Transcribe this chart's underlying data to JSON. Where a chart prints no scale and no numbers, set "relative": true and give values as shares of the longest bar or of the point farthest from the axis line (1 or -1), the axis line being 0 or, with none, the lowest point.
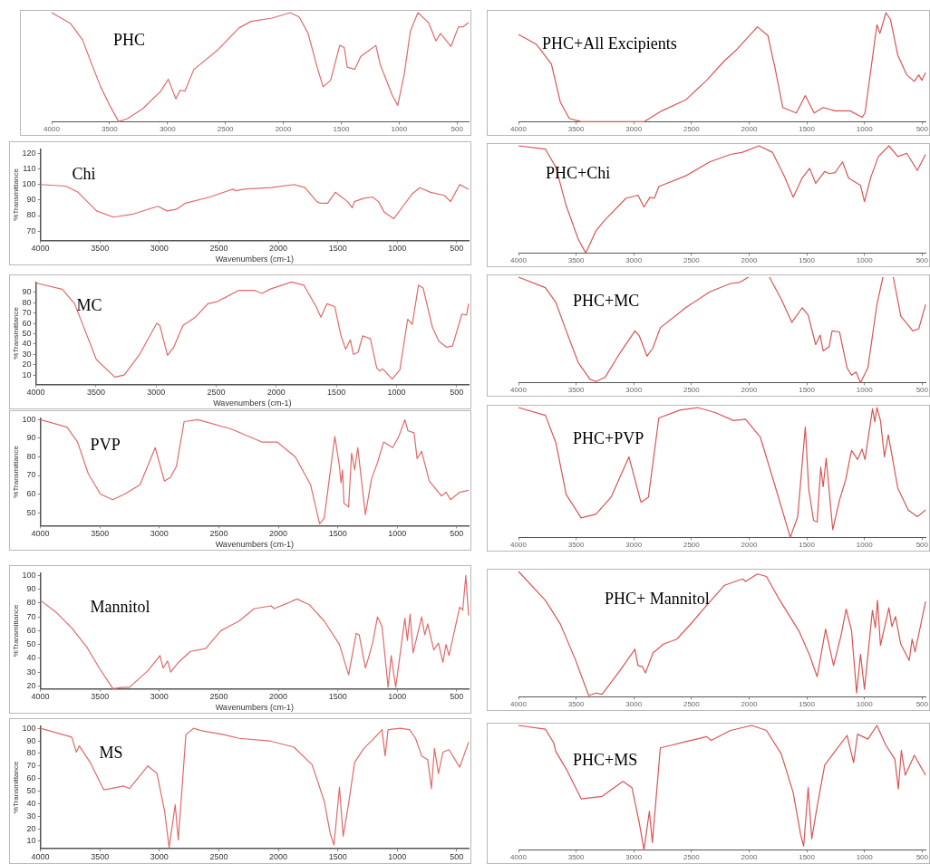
{
  "chart_data": [
    {
      "type": "line",
      "title": "PHC",
      "relative": true,
      "tick_labels": "x",
      "color": "#e06a6a",
      "xlim": [
        4000,
        400
      ],
      "xticks": [
        4000,
        3500,
        3000,
        2500,
        2000,
        1500,
        1000,
        500
      ],
      "x": [
        4000,
        3836,
        3733,
        3655,
        3577,
        3499,
        3421,
        3343,
        3213,
        3058,
        2993,
        2928,
        2889,
        2850,
        2772,
        2564,
        2383,
        2279,
        2097,
        1941,
        1863,
        1786,
        1708,
        1656,
        1591,
        1513,
        1474,
        1448,
        1383,
        1331,
        1266,
        1201,
        1162,
        1058,
        1012,
        955,
        903,
        838,
        747,
        682,
        643,
        552,
        488,
        449,
        400
      ],
      "values": [
        1.0,
        0.9,
        0.75,
        0.53,
        0.32,
        0.15,
        0.0,
        0.03,
        0.12,
        0.28,
        0.39,
        0.21,
        0.29,
        0.28,
        0.48,
        0.66,
        0.86,
        0.92,
        0.95,
        1.0,
        0.96,
        0.81,
        0.5,
        0.32,
        0.38,
        0.7,
        0.68,
        0.5,
        0.48,
        0.6,
        0.65,
        0.7,
        0.52,
        0.24,
        0.15,
        0.44,
        0.83,
        1.0,
        0.91,
        0.74,
        0.81,
        0.69,
        0.87,
        0.87,
        0.91
      ]
    },
    {
      "type": "line",
      "title": "PHC+All Excipients",
      "relative": true,
      "tick_labels": "x",
      "color": "#d85555",
      "xlim": [
        4000,
        470
      ],
      "xticks": [
        4000,
        3500,
        3000,
        2500,
        2000,
        1500,
        1000,
        500
      ],
      "x": [
        4000,
        3845,
        3715,
        3637,
        3560,
        3456,
        3068,
        2912,
        2757,
        2550,
        2368,
        2213,
        2109,
        1928,
        1837,
        1773,
        1708,
        1591,
        1513,
        1436,
        1358,
        1255,
        1125,
        1021,
        995,
        892,
        866,
        814,
        775,
        711,
        633,
        568,
        529,
        503,
        470
      ],
      "values": [
        0.8,
        0.71,
        0.53,
        0.18,
        0.03,
        0,
        0,
        0,
        0.1,
        0.2,
        0.38,
        0.56,
        0.66,
        0.87,
        0.79,
        0.48,
        0.13,
        0.08,
        0.24,
        0.08,
        0.13,
        0.1,
        0.1,
        0.04,
        0.08,
        0.89,
        0.81,
        1.0,
        0.94,
        0.61,
        0.43,
        0.37,
        0.43,
        0.38,
        0.45
      ]
    },
    {
      "type": "line",
      "title": "Chi",
      "xlabel": "Wavenumbers (cm-1)",
      "ylabel": "%Transmittance",
      "color": "#e06a6a",
      "xlim": [
        4000,
        400
      ],
      "xticks": [
        4000,
        3500,
        3000,
        2500,
        2000,
        1500,
        1000,
        500
      ],
      "ylim": [
        64,
        123
      ],
      "yticks": [
        70,
        80,
        90,
        100,
        110,
        120
      ],
      "x": [
        4000,
        3786,
        3683,
        3606,
        3528,
        3387,
        3219,
        3013,
        2936,
        2858,
        2781,
        2575,
        2382,
        2356,
        2291,
        2060,
        1866,
        1776,
        1676,
        1650,
        1585,
        1521,
        1469,
        1418,
        1379,
        1360,
        1287,
        1209,
        1158,
        1107,
        1029,
        952,
        875,
        810,
        720,
        604,
        552,
        475,
        400
      ],
      "values": [
        100,
        99,
        95,
        89,
        83,
        79,
        81,
        86,
        83,
        84,
        88,
        92,
        97,
        96,
        97,
        98,
        100,
        98,
        89,
        88,
        88,
        95,
        92,
        89,
        85,
        89,
        91,
        92,
        89,
        82,
        78,
        86,
        94,
        98,
        95,
        93,
        89,
        100,
        97
      ]
    },
    {
      "type": "line",
      "title": "PHC+Chi",
      "relative": true,
      "tick_labels": "x",
      "color": "#d85555",
      "xlim": [
        4000,
        470
      ],
      "xticks": [
        4000,
        3500,
        3000,
        2500,
        2000,
        1500,
        1000,
        500
      ],
      "x": [
        4000,
        3767,
        3676,
        3586,
        3482,
        3417,
        3327,
        3249,
        3068,
        2964,
        2912,
        2860,
        2822,
        2783,
        2550,
        2342,
        2161,
        2057,
        1915,
        1799,
        1696,
        1618,
        1540,
        1475,
        1423,
        1345,
        1306,
        1255,
        1190,
        1138,
        1034,
        1000,
        944,
        879,
        788,
        711,
        633,
        542,
        470
      ],
      "values": [
        1,
        0.97,
        0.8,
        0.44,
        0.13,
        0,
        0.21,
        0.31,
        0.51,
        0.54,
        0.43,
        0.52,
        0.51,
        0.62,
        0.72,
        0.85,
        0.92,
        0.94,
        1,
        0.94,
        0.72,
        0.52,
        0.7,
        0.79,
        0.65,
        0.76,
        0.74,
        0.75,
        0.85,
        0.7,
        0.63,
        0.48,
        0.71,
        0.9,
        1,
        0.9,
        0.93,
        0.77,
        0.92
      ]
    },
    {
      "type": "line",
      "title": "MC",
      "xlabel": "Wavenumbers (cm-1)",
      "ylabel": "%Transmittance",
      "color": "#e06a6a",
      "xlim": [
        4000,
        400
      ],
      "xticks": [
        4000,
        3500,
        3000,
        2500,
        2000,
        1500,
        1000,
        500
      ],
      "ylim": [
        1,
        100
      ],
      "yticks": [
        10,
        20,
        30,
        40,
        50,
        60,
        70,
        80,
        90
      ],
      "x": [
        4000,
        3781,
        3678,
        3601,
        3497,
        3343,
        3266,
        3137,
        2995,
        2969,
        2905,
        2853,
        2776,
        2673,
        2570,
        2492,
        2312,
        2183,
        2119,
        2054,
        1874,
        1771,
        1668,
        1629,
        1578,
        1513,
        1462,
        1423,
        1384,
        1358,
        1320,
        1281,
        1217,
        1165,
        1140,
        1114,
        1036,
        972,
        907,
        869,
        817,
        778,
        701,
        649,
        585,
        534,
        456,
        417,
        400
      ],
      "values": [
        99,
        93,
        79,
        56,
        25,
        8,
        10,
        30,
        60,
        58,
        29,
        37,
        58,
        66,
        79,
        81,
        92,
        92,
        89,
        93,
        100,
        97,
        76,
        66,
        79,
        76,
        48,
        35,
        44,
        30,
        32,
        48,
        45,
        17,
        14,
        16,
        6,
        15,
        64,
        59,
        97,
        94,
        56,
        43,
        37,
        38,
        69,
        68,
        79
      ]
    },
    {
      "type": "line",
      "title": "PHC+MC",
      "relative": true,
      "tick_labels": "x",
      "color": "#d85555",
      "xlim": [
        4000,
        470
      ],
      "xticks": [
        4000,
        3500,
        3000,
        2500,
        2000,
        1500,
        1000,
        500
      ],
      "x": [
        4000,
        3767,
        3676,
        3586,
        3482,
        3379,
        3327,
        3249,
        3120,
        2990,
        2951,
        2886,
        2834,
        2770,
        2550,
        2342,
        2161,
        2083,
        2005,
        1950,
        1824,
        1721,
        1630,
        1540,
        1488,
        1423,
        1384,
        1358,
        1306,
        1281,
        1216,
        1151,
        1112,
        1073,
        1034,
        970,
        892,
        840,
        793,
        750,
        685,
        633,
        581,
        529,
        470
      ],
      "values": [
        1,
        0.9,
        0.76,
        0.49,
        0.19,
        0.03,
        0.01,
        0.05,
        0.28,
        0.49,
        0.44,
        0.25,
        0.33,
        0.52,
        0.71,
        0.86,
        0.94,
        0.95,
        1,
        null,
        1,
        0.79,
        0.57,
        0.71,
        0.64,
        0.36,
        0.45,
        0.3,
        0.34,
        0.49,
        0.48,
        0.14,
        0.07,
        0.1,
        0,
        0.14,
        0.74,
        1,
        null,
        1,
        0.63,
        0.56,
        0.49,
        0.51,
        0.74
      ]
    },
    {
      "type": "line",
      "title": "PVP",
      "xlabel": "Wavenumbers (cm-1)",
      "ylabel": "%Transmittance",
      "color": "#e06a6a",
      "xlim": [
        4000,
        400
      ],
      "xticks": [
        4000,
        3500,
        3000,
        2500,
        2000,
        1500,
        1000,
        500
      ],
      "ylim": [
        43,
        101
      ],
      "yticks": [
        50,
        60,
        70,
        80,
        90,
        100
      ],
      "x": [
        4000,
        3777,
        3688,
        3598,
        3496,
        3393,
        3291,
        3163,
        3035,
        2958,
        2907,
        2856,
        2792,
        2676,
        2395,
        2139,
        2011,
        1857,
        1729,
        1653,
        1614,
        1525,
        1486,
        1473,
        1460,
        1448,
        1409,
        1384,
        1358,
        1332,
        1268,
        1217,
        1166,
        1115,
        1038,
        987,
        936,
        910,
        859,
        833,
        795,
        731,
        628,
        590,
        552,
        475,
        400
      ],
      "values": [
        100,
        96,
        88,
        71,
        60,
        57,
        60,
        65,
        85,
        67,
        69,
        75,
        99,
        100,
        95,
        88,
        88,
        80,
        65,
        44,
        47,
        91,
        75,
        66,
        73,
        55,
        53,
        82,
        73,
        85,
        49,
        68,
        77,
        88,
        85,
        91,
        100,
        94,
        93,
        79,
        83,
        67,
        59,
        61,
        57,
        61,
        62
      ]
    },
    {
      "type": "line",
      "title": "PHC+PVP",
      "relative": true,
      "tick_labels": "x",
      "color": "#d85555",
      "xlim": [
        4000,
        470
      ],
      "xticks": [
        4000,
        3500,
        3000,
        2500,
        2000,
        1500,
        1000,
        500
      ],
      "x": [
        4000,
        3767,
        3676,
        3586,
        3456,
        3327,
        3197,
        3042,
        2938,
        2873,
        2783,
        2601,
        2446,
        2290,
        2135,
        2031,
        1902,
        1773,
        1643,
        1579,
        1513,
        1483,
        1441,
        1410,
        1379,
        1358,
        1332,
        1275,
        1216,
        1164,
        1112,
        1060,
        1021,
        995,
        930,
        910,
        892,
        861,
        827,
        793,
        711,
        620,
        542,
        470
      ],
      "values": [
        1,
        0.94,
        0.73,
        0.33,
        0.15,
        0.18,
        0.31,
        0.62,
        0.27,
        0.31,
        0.92,
        0.98,
        1,
        0.96,
        0.9,
        0.91,
        0.77,
        0.39,
        0,
        0.16,
        0.85,
        0.37,
        0.13,
        0.12,
        0.54,
        0.39,
        0.61,
        0.06,
        0.29,
        0.44,
        0.67,
        0.6,
        0.68,
        0.6,
        0.99,
        0.89,
        1,
        0.9,
        0.62,
        0.79,
        0.38,
        0.21,
        0.16,
        0.21
      ]
    },
    {
      "type": "line",
      "title": "Mannitol",
      "xlabel": "Wavenumbers (cm-1)",
      "ylabel": "%Transmittance",
      "color": "#e06a6a",
      "xlim": [
        4000,
        400
      ],
      "xticks": [
        4000,
        3500,
        3000,
        2500,
        2000,
        1500,
        1000,
        500
      ],
      "ylim": [
        18,
        102
      ],
      "yticks": [
        20,
        30,
        40,
        50,
        60,
        70,
        80,
        90,
        100
      ],
      "x": [
        4000,
        3864,
        3737,
        3609,
        3506,
        3391,
        3302,
        3251,
        3097,
        2995,
        2969,
        2931,
        2905,
        2841,
        2739,
        2611,
        2483,
        2330,
        2202,
        2061,
        2035,
        1920,
        1844,
        1742,
        1614,
        1486,
        1409,
        1345,
        1320,
        1268,
        1243,
        1205,
        1166,
        1128,
        1077,
        1051,
        1013,
        936,
        915,
        892,
        867,
        795,
        769,
        744,
        693,
        654,
        616,
        590,
        565,
        475,
        449,
        424,
        400
      ],
      "values": [
        82,
        73,
        62,
        48,
        33,
        18,
        19,
        19,
        31,
        42,
        33,
        38,
        30,
        37,
        45,
        47,
        60,
        67,
        76,
        78,
        76,
        80,
        83,
        79,
        67,
        50,
        28,
        58,
        57,
        33,
        40,
        52,
        70,
        63,
        19,
        42,
        19,
        69,
        53,
        72,
        44,
        70,
        57,
        65,
        46,
        51,
        37,
        50,
        42,
        77,
        75,
        100,
        71
      ]
    },
    {
      "type": "line",
      "title": "PHC+ Mannitol",
      "relative": true,
      "tick_labels": "x",
      "color": "#d85555",
      "xlim": [
        4000,
        470
      ],
      "xticks": [
        4000,
        3500,
        3000,
        2500,
        2000,
        1500,
        1000,
        500
      ],
      "x": [
        4000,
        3767,
        3637,
        3508,
        3391,
        3327,
        3275,
        3120,
        2990,
        2964,
        2925,
        2899,
        2834,
        2744,
        2627,
        2498,
        2368,
        2213,
        2057,
        2031,
        1928,
        1850,
        1747,
        1565,
        1475,
        1410,
        1337,
        1268,
        1203,
        1159,
        1112,
        1068,
        1034,
        1000,
        931,
        905,
        887,
        861,
        788,
        762,
        731,
        685,
        612,
        587,
        561,
        470
      ],
      "values": [
        1,
        0.77,
        0.58,
        0.3,
        0.01,
        0.03,
        0.02,
        0.21,
        0.38,
        0.25,
        0.24,
        0.19,
        0.35,
        0.42,
        0.46,
        0.59,
        0.73,
        0.89,
        0.94,
        0.92,
        0.98,
        0.96,
        0.79,
        0.52,
        0.33,
        0.16,
        0.54,
        0.25,
        0.49,
        0.7,
        0.53,
        0.03,
        0.34,
        0.06,
        0.69,
        0.55,
        0.77,
        0.41,
        0.71,
        0.56,
        0.64,
        0.42,
        0.29,
        0.46,
        0.36,
        0.76
      ]
    },
    {
      "type": "line",
      "title": "MS",
      "ylabel": "%Transmittance",
      "color": "#e06a6a",
      "xlim": [
        4000,
        400
      ],
      "xticks": [
        4000,
        3500,
        3000,
        2500,
        2000,
        1500,
        1000,
        500
      ],
      "ylim": [
        4,
        102
      ],
      "yticks": [
        10,
        20,
        30,
        40,
        50,
        60,
        70,
        80,
        90,
        100
      ],
      "x": [
        4000,
        3737,
        3698,
        3673,
        3583,
        3468,
        3404,
        3302,
        3251,
        3097,
        3020,
        2956,
        2918,
        2867,
        2841,
        2777,
        2713,
        2644,
        2459,
        2330,
        2074,
        1869,
        1716,
        1614,
        1563,
        1532,
        1486,
        1455,
        1409,
        1358,
        1281,
        1205,
        1128,
        1102,
        1077,
        974,
        897,
        846,
        795,
        744,
        713,
        687,
        654,
        616,
        565,
        475,
        400
      ],
      "values": [
        100,
        93,
        81,
        86,
        73,
        51,
        52,
        54,
        52,
        70,
        64,
        34,
        5,
        39,
        11,
        95,
        100,
        98,
        95,
        92,
        90,
        85,
        71,
        42,
        16,
        7,
        53,
        14,
        40,
        73,
        84,
        91,
        99,
        78,
        99,
        100,
        99,
        92,
        78,
        75,
        52,
        84,
        64,
        81,
        83,
        69,
        89
      ]
    },
    {
      "type": "line",
      "title": "PHC+MS",
      "relative": true,
      "tick_labels": "x",
      "color": "#d85555",
      "xlim": [
        4000,
        470
      ],
      "xticks": [
        4000,
        3500,
        3000,
        2500,
        2000,
        1500,
        1000,
        500
      ],
      "x": [
        4000,
        3767,
        3695,
        3676,
        3586,
        3456,
        3275,
        3094,
        3016,
        2951,
        2912,
        2865,
        2839,
        2770,
        2679,
        2550,
        2368,
        2329,
        2161,
        1979,
        1850,
        1721,
        1618,
        1553,
        1527,
        1488,
        1457,
        1410,
        1345,
        1241,
        1151,
        1094,
        1060,
        970,
        892,
        814,
        737,
        706,
        680,
        646,
        568,
        470
      ],
      "values": [
        1,
        0.97,
        0.86,
        0.79,
        0.65,
        0.41,
        0.43,
        0.55,
        0.5,
        0.21,
        0,
        0.31,
        0.06,
        0.82,
        0.84,
        0.87,
        0.91,
        0.88,
        0.96,
        1,
        0.96,
        0.77,
        0.46,
        0.12,
        0.03,
        0.5,
        0.09,
        0.35,
        0.68,
        0.81,
        0.92,
        0.7,
        0.93,
        0.89,
        1,
        0.84,
        0.73,
        0.49,
        0.8,
        0.6,
        0.76,
        0.6
      ]
    }
  ]
}
